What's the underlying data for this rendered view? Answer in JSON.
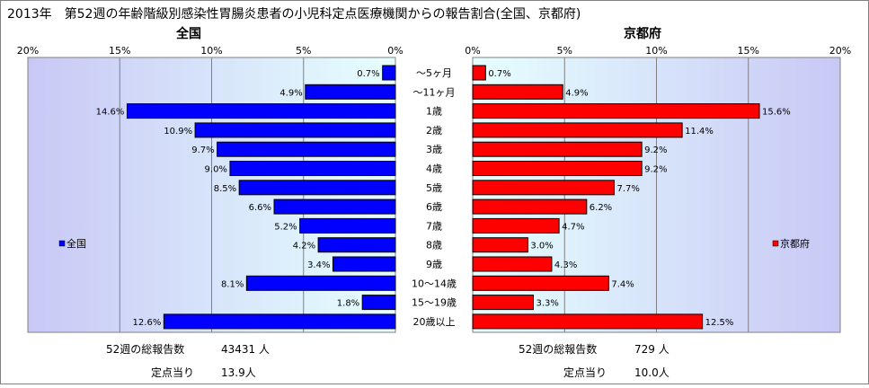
{
  "title": "2013年　第52週の年齢階級別感染性胃腸炎患者の小児科定点医療機関からの報告割合(全国、京都府)",
  "colors": {
    "national": "#0000ff",
    "kyoto": "#ff0000",
    "plot_bg_inner": "#e6ffff",
    "plot_bg_outer": "#c8c8f5"
  },
  "chart_data": [
    {
      "type": "bar",
      "orientation": "horizontal",
      "direction": "right-to-left",
      "title": "全国",
      "categories": [
        "～5ヶ月",
        "～11ヶ月",
        "1歳",
        "2歳",
        "3歳",
        "4歳",
        "5歳",
        "6歳",
        "7歳",
        "8歳",
        "9歳",
        "10～14歳",
        "15～19歳",
        "20歳以上"
      ],
      "series": [
        {
          "name": "全国",
          "values": [
            0.7,
            4.9,
            14.6,
            10.9,
            9.7,
            9.0,
            8.5,
            6.6,
            5.2,
            4.2,
            3.4,
            8.1,
            1.8,
            12.6
          ]
        }
      ],
      "data_labels": [
        "0.7%",
        "4.9%",
        "14.6%",
        "10.9%",
        "9.7%",
        "9.0%",
        "8.5%",
        "6.6%",
        "5.2%",
        "4.2%",
        "3.4%",
        "8.1%",
        "1.8%",
        "12.6%"
      ],
      "xlim": [
        0,
        20
      ],
      "tick_labels": [
        "20%",
        "15%",
        "10%",
        "5%",
        "0%"
      ],
      "legend": "left",
      "grid": true,
      "summary": [
        {
          "label": "52週の総報告数",
          "value": "43431 人"
        },
        {
          "label": "定点当り",
          "value": "13.9人"
        }
      ]
    },
    {
      "type": "bar",
      "orientation": "horizontal",
      "direction": "left-to-right",
      "title": "京都府",
      "categories": [
        "～5ヶ月",
        "～11ヶ月",
        "1歳",
        "2歳",
        "3歳",
        "4歳",
        "5歳",
        "6歳",
        "7歳",
        "8歳",
        "9歳",
        "10～14歳",
        "15～19歳",
        "20歳以上"
      ],
      "series": [
        {
          "name": "京都府",
          "values": [
            0.7,
            4.9,
            15.6,
            11.4,
            9.2,
            9.2,
            7.7,
            6.2,
            4.7,
            3.0,
            4.3,
            7.4,
            3.3,
            12.5
          ]
        }
      ],
      "data_labels": [
        "0.7%",
        "4.9%",
        "15.6%",
        "11.4%",
        "9.2%",
        "9.2%",
        "7.7%",
        "6.2%",
        "4.7%",
        "3.0%",
        "4.3%",
        "7.4%",
        "3.3%",
        "12.5%"
      ],
      "xlim": [
        0,
        20
      ],
      "tick_labels": [
        "0%",
        "5%",
        "10%",
        "15%",
        "20%"
      ],
      "legend": "right",
      "grid": true,
      "summary": [
        {
          "label": "52週の総報告数",
          "value": "729 人"
        },
        {
          "label": "定点当り",
          "value": "10.0人"
        }
      ]
    }
  ]
}
